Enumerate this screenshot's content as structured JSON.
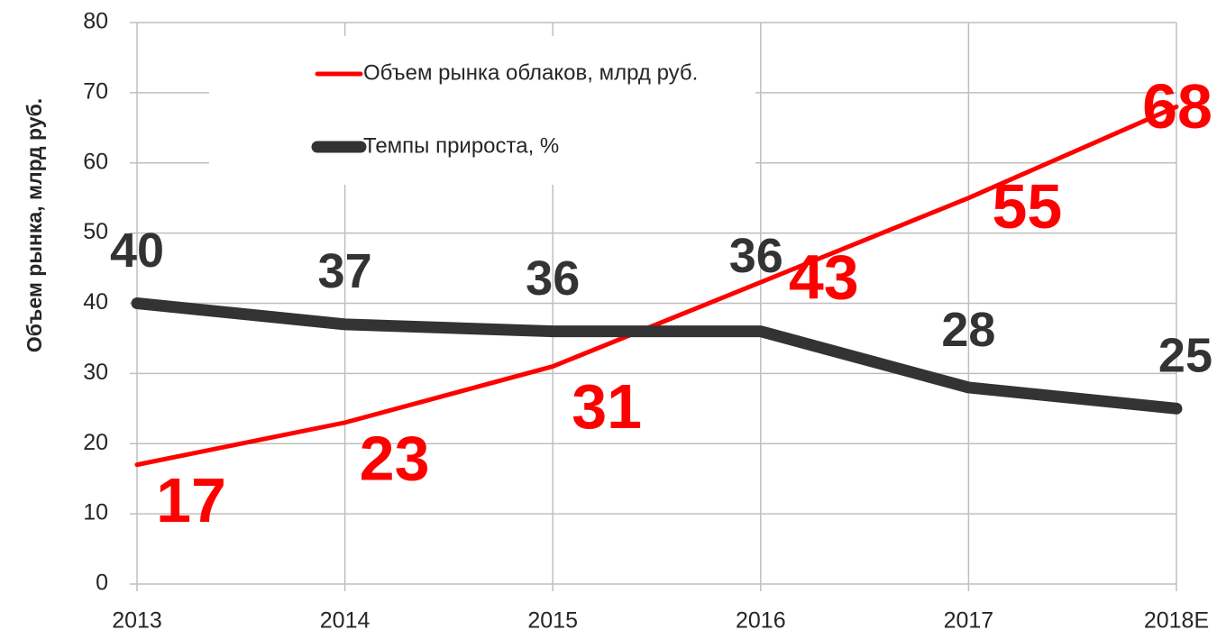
{
  "chart_data": {
    "type": "line",
    "y_label": "Объем рынка, млрд руб.",
    "categories": [
      "2013",
      "2014",
      "2015",
      "2016",
      "2017",
      "2018E"
    ],
    "series": [
      {
        "name": "Объем рынка облаков, млрд руб.",
        "color": "#ff0000",
        "values": [
          17,
          23,
          31,
          43,
          55,
          68
        ]
      },
      {
        "name": "Темпы прироста, %",
        "color": "#333333",
        "values": [
          40,
          37,
          36,
          36,
          28,
          25
        ]
      }
    ],
    "ylim": [
      0,
      80
    ],
    "yticks": [
      0,
      10,
      20,
      30,
      40,
      50,
      60,
      70,
      80
    ],
    "grid": true
  }
}
